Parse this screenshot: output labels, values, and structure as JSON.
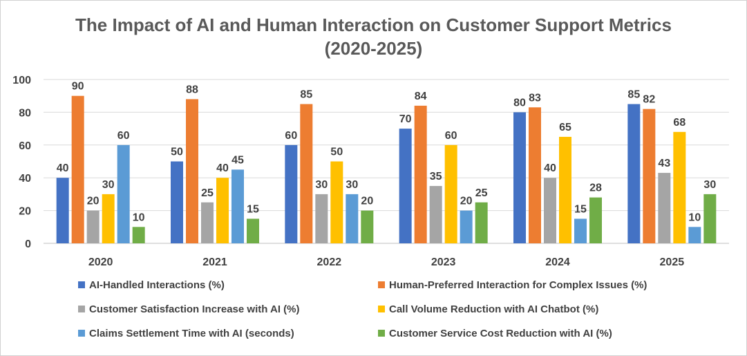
{
  "chart_data": {
    "type": "bar",
    "title_line1": "The Impact of AI and Human Interaction on Customer Support Metrics",
    "title_line2": "(2020-2025)",
    "categories": [
      "2020",
      "2021",
      "2022",
      "2023",
      "2024",
      "2025"
    ],
    "ylim": [
      0,
      100
    ],
    "yticks": [
      0,
      20,
      40,
      60,
      80,
      100
    ],
    "grid": true,
    "legend_position": "bottom",
    "series": [
      {
        "name": "AI-Handled Interactions (%)",
        "color": "#4472C4",
        "values": [
          40,
          50,
          60,
          70,
          80,
          85
        ]
      },
      {
        "name": "Human-Preferred Interaction for Complex Issues (%)",
        "color": "#ED7D31",
        "values": [
          90,
          88,
          85,
          84,
          83,
          82
        ]
      },
      {
        "name": "Customer Satisfaction Increase with AI (%)",
        "color": "#A5A5A5",
        "values": [
          20,
          25,
          30,
          35,
          40,
          43
        ]
      },
      {
        "name": "Call Volume Reduction with AI Chatbot (%)",
        "color": "#FFC000",
        "values": [
          30,
          40,
          50,
          60,
          65,
          68
        ]
      },
      {
        "name": "Claims Settlement Time with AI (seconds)",
        "color": "#5B9BD5",
        "values": [
          60,
          45,
          30,
          20,
          15,
          10
        ]
      },
      {
        "name": "Customer Service Cost Reduction with AI (%)",
        "color": "#70AD47",
        "values": [
          10,
          15,
          20,
          25,
          28,
          30
        ]
      }
    ]
  }
}
